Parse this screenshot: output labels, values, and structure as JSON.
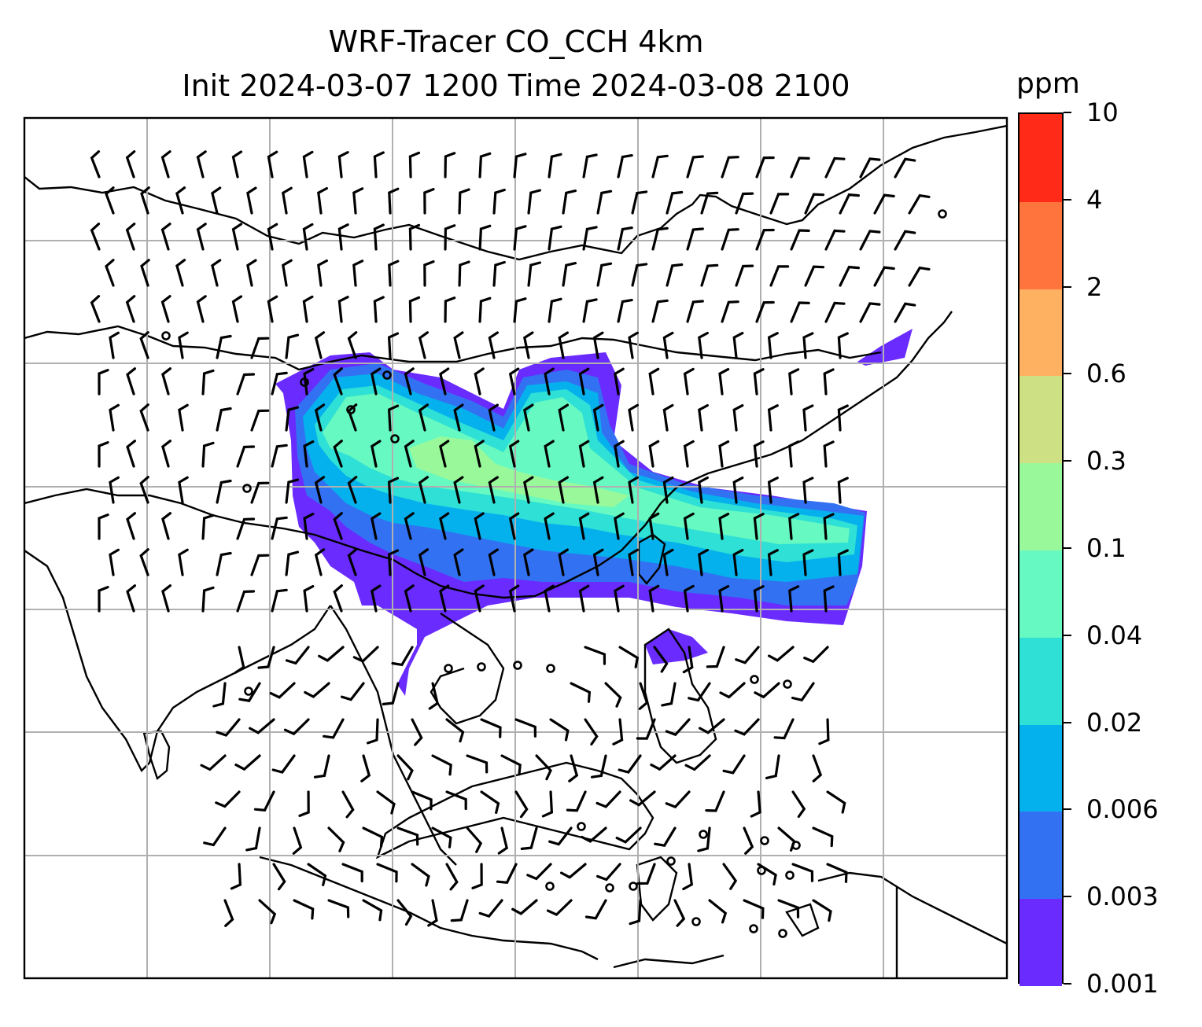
{
  "title": {
    "line1": "WRF-Tracer CO_CCH 4km",
    "line2": "Init 2024-03-07 1200 Time 2024-03-08 2100"
  },
  "colorbar": {
    "unit": "ppm",
    "levels": [
      "0.001",
      "0.003",
      "0.006",
      "0.02",
      "0.04",
      "0.1",
      "0.3",
      "0.6",
      "2",
      "4",
      "10"
    ],
    "colors": [
      "#6a2bff",
      "#3272f2",
      "#05b1ed",
      "#2ee0d5",
      "#66f9c1",
      "#99f99a",
      "#cde084",
      "#ffb162",
      "#ff733c",
      "#ff2a17"
    ]
  },
  "map": {
    "gridlines": true,
    "wind_barbs": true,
    "variable": "CO_CCH tracer",
    "resolution": "4km"
  }
}
